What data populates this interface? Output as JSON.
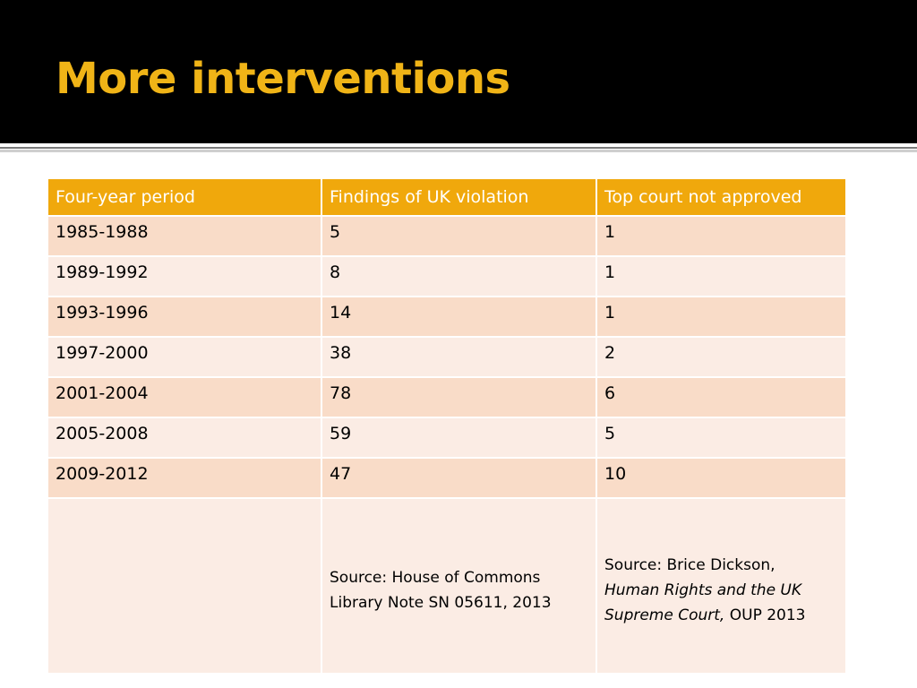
{
  "slide": {
    "title": "More interventions"
  },
  "table": {
    "headers": [
      "Four-year period",
      "Findings of UK violation",
      "Top court not approved"
    ],
    "rows": [
      [
        "1985-1988",
        "5",
        "1"
      ],
      [
        "1989-1992",
        "8",
        "1"
      ],
      [
        "1993-1996",
        "14",
        "1"
      ],
      [
        "1997-2000",
        "38",
        "2"
      ],
      [
        "2001-2004",
        "78",
        "6"
      ],
      [
        "2005-2008",
        "59",
        "5"
      ],
      [
        "2009-2012",
        "47",
        "10"
      ]
    ],
    "source_row": {
      "col1": "",
      "col2": "Source: House of Commons Library Note SN 05611, 2013",
      "col3_prefix": "Source: Brice Dickson,",
      "col3_italic": "Human Rights and the UK Supreme Court,",
      "col3_suffix": "OUP 2013"
    }
  },
  "colors": {
    "title_bar": "#000000",
    "title_text": "#f0b417",
    "header_fill": "#f0a80c",
    "row_shade_a": "#f9dcc8",
    "row_shade_b": "#fbece4"
  }
}
